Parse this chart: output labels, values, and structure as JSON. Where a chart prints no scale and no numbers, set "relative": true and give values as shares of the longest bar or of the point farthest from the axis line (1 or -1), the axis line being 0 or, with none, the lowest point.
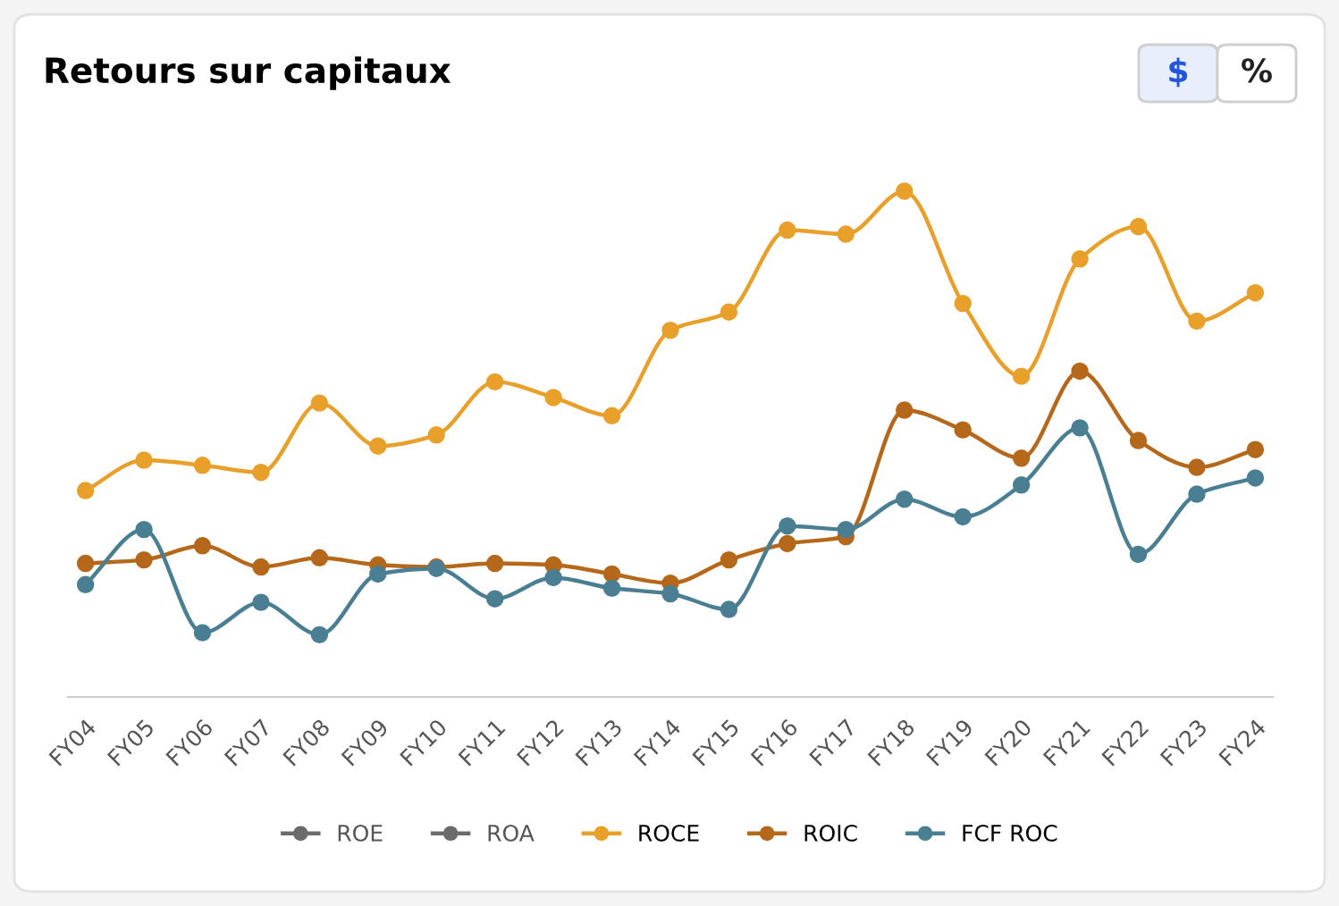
{
  "chart_data": {
    "type": "line",
    "title": "Retours sur capitaux",
    "relative": true,
    "categories": [
      "FY04",
      "FY05",
      "FY06",
      "FY07",
      "FY08",
      "FY09",
      "FY10",
      "FY11",
      "FY12",
      "FY13",
      "FY14",
      "FY15",
      "FY16",
      "FY17",
      "FY18",
      "FY19",
      "FY20",
      "FY21",
      "FY22",
      "FY23",
      "FY24"
    ],
    "series": [
      {
        "name": "ROE",
        "color": "#6b6b6b",
        "values": [
          null,
          null,
          null,
          null,
          null,
          null,
          null,
          null,
          null,
          null,
          null,
          null,
          null,
          null,
          null,
          null,
          null,
          null,
          null,
          null,
          null
        ]
      },
      {
        "name": "ROA",
        "color": "#6b6b6b",
        "values": [
          null,
          null,
          null,
          null,
          null,
          null,
          null,
          null,
          null,
          null,
          null,
          null,
          null,
          null,
          null,
          null,
          null,
          null,
          null,
          null,
          null
        ]
      },
      {
        "name": "ROCE",
        "color": "#e8a02a",
        "values": [
          0.408,
          0.468,
          0.458,
          0.444,
          0.581,
          0.496,
          0.518,
          0.623,
          0.592,
          0.556,
          0.725,
          0.761,
          0.923,
          0.915,
          1,
          0.778,
          0.634,
          0.866,
          0.93,
          0.743,
          0.799
        ]
      },
      {
        "name": "ROIC",
        "color": "#b5671a",
        "values": [
          0.264,
          0.271,
          0.299,
          0.257,
          0.275,
          0.261,
          0.257,
          0.264,
          0.261,
          0.243,
          0.225,
          0.271,
          0.303,
          0.317,
          0.567,
          0.528,
          0.472,
          0.644,
          0.507,
          0.454,
          0.489
        ]
      },
      {
        "name": "FCF ROC",
        "color": "#4a7f93",
        "values": [
          0.222,
          0.331,
          0.127,
          0.187,
          0.123,
          0.243,
          0.254,
          0.194,
          0.236,
          0.215,
          0.204,
          0.173,
          0.338,
          0.331,
          0.391,
          0.356,
          0.419,
          0.532,
          0.282,
          0.401,
          0.433
        ]
      }
    ],
    "annotations": [
      "$",
      "%"
    ],
    "marker": "circle",
    "line_style": "solid",
    "legend": "bottom",
    "grid": false
  }
}
